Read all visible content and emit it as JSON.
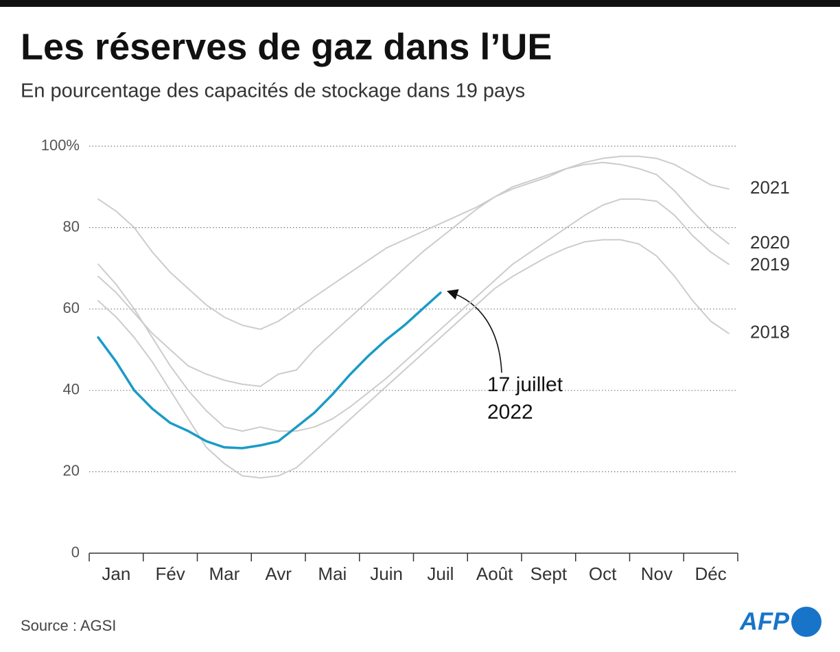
{
  "chart_data": {
    "type": "line",
    "title": "Les réserves de gaz dans l’UE",
    "subtitle": "En pourcentage des capacités de stockage dans 19 pays",
    "source": "Source : AGSI",
    "logo": "AFP",
    "annotation": [
      "17 juillet",
      "2022"
    ],
    "categories": [
      null,
      "Jan",
      null,
      null,
      "Fév",
      null,
      null,
      "Mar",
      null,
      null,
      "Avr",
      null,
      null,
      "Mai",
      null,
      null,
      "Juin",
      null,
      null,
      "Juil",
      null,
      null,
      "Août",
      null,
      null,
      "Sept",
      null,
      null,
      "Oct",
      null,
      null,
      "Nov",
      null,
      null,
      "Déc",
      null
    ],
    "ylim": [
      0,
      100
    ],
    "yticks": [
      0,
      20,
      40,
      60,
      80,
      {
        "value": 100,
        "label": "100%"
      }
    ],
    "grid": true,
    "series": [
      {
        "name": "2021",
        "color": "#cccccc",
        "values": [
          87,
          84,
          80,
          74,
          69,
          65,
          61,
          58,
          56,
          55,
          57,
          60,
          63,
          66,
          69,
          72,
          75,
          77,
          79,
          81,
          83,
          85,
          87.5,
          89.5,
          91,
          92.5,
          94.5,
          96,
          97,
          97.5,
          97.5,
          97,
          95.5,
          93,
          90.5,
          89.5
        ]
      },
      {
        "name": "2020",
        "color": "#cccccc",
        "values": [
          68,
          64,
          59,
          54,
          50,
          46,
          44,
          42.5,
          41.5,
          41,
          44,
          45,
          50,
          54,
          58,
          62,
          66,
          70,
          74,
          77.5,
          81,
          84.5,
          87.5,
          90,
          91.5,
          93,
          94.5,
          95.5,
          96,
          95.5,
          94.5,
          93,
          89,
          84,
          79.5,
          76
        ]
      },
      {
        "name": "2019",
        "color": "#cccccc",
        "values": [
          71,
          66,
          60,
          53,
          46,
          40,
          35,
          31,
          30,
          31,
          30,
          30,
          31,
          33,
          36,
          39.5,
          43,
          47,
          51,
          55,
          59,
          63,
          67,
          71,
          74,
          77,
          80,
          83,
          85.5,
          87,
          87,
          86.5,
          83,
          78,
          74,
          71
        ]
      },
      {
        "name": "2018",
        "color": "#cccccc",
        "values": [
          62,
          58,
          53,
          47,
          40,
          33,
          26,
          22,
          19,
          18.5,
          19,
          21,
          25,
          29,
          33,
          37,
          41,
          45,
          49,
          53,
          57,
          61,
          65,
          68,
          70.5,
          73,
          75,
          76.5,
          77,
          77,
          76,
          73,
          68,
          62,
          57,
          54
        ]
      },
      {
        "color": "#1a9bc6",
        "values": [
          53,
          47,
          40,
          35.5,
          32,
          30,
          27.5,
          26,
          25.8,
          26.5,
          27.5,
          31,
          34.5,
          39,
          44,
          48.5,
          52.5,
          56,
          60,
          64,
          null,
          null,
          null,
          null,
          null,
          null,
          null,
          null,
          null,
          null,
          null,
          null,
          null,
          null,
          null,
          null
        ]
      }
    ]
  }
}
